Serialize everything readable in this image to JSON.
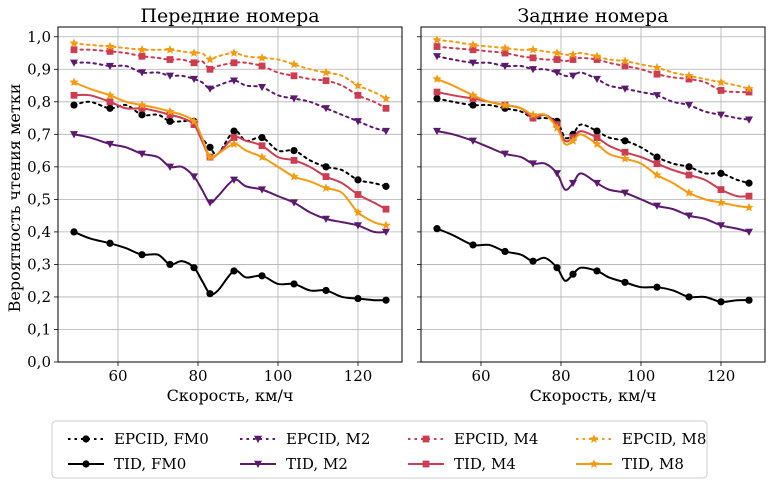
{
  "chart_data": {
    "type": "line",
    "ylabel": "Вероятность чтения метки",
    "xlim": [
      45,
      131
    ],
    "ylim": [
      0.0,
      1.03
    ],
    "x_ticks": [
      60,
      80,
      100,
      120
    ],
    "x_tick_labels": [
      "60",
      "80",
      "100",
      "120"
    ],
    "y_ticks": [
      0.0,
      0.1,
      0.2,
      0.3,
      0.4,
      0.5,
      0.6,
      0.7,
      0.8,
      0.9,
      1.0
    ],
    "y_tick_labels": [
      "0,0",
      "0,1",
      "0,2",
      "0,3",
      "0,4",
      "0,5",
      "0,6",
      "0,7",
      "0,8",
      "0,9",
      "1,0"
    ],
    "grid": true,
    "legend_position": "bottom",
    "legend": [
      {
        "label": "EPCID, FM0",
        "color": "#000000",
        "style": "dotted",
        "marker": "circle"
      },
      {
        "label": "TID, FM0",
        "color": "#000000",
        "style": "solid",
        "marker": "circle"
      },
      {
        "label": "EPCID, M2",
        "color": "#5c1a6e",
        "style": "dotted",
        "marker": "triangle-down"
      },
      {
        "label": "TID, M2",
        "color": "#5c1a6e",
        "style": "solid",
        "marker": "triangle-down"
      },
      {
        "label": "EPCID, M4",
        "color": "#cc3d51",
        "style": "dotted",
        "marker": "square"
      },
      {
        "label": "TID, M4",
        "color": "#cc3d51",
        "style": "solid",
        "marker": "square"
      },
      {
        "label": "EPCID, M8",
        "color": "#f39c12",
        "style": "dotted",
        "marker": "star"
      },
      {
        "label": "TID, M8",
        "color": "#f39c12",
        "style": "solid",
        "marker": "star"
      }
    ],
    "panels": [
      {
        "title": "Передние номера",
        "xlabel": "Скорость, км/ч",
        "series": [
          {
            "name": "EPCID, FM0",
            "color": "#000000",
            "style": "dotted",
            "marker": "circle",
            "x": [
              49,
              53,
              58,
              62,
              66,
              70,
              73,
              76,
              79,
              81,
              83,
              85,
              89,
              92,
              96,
              100,
              104,
              108,
              112,
              116,
              120,
              124,
              127
            ],
            "y": [
              0.79,
              0.8,
              0.78,
              0.79,
              0.76,
              0.76,
              0.74,
              0.74,
              0.74,
              0.69,
              0.66,
              0.64,
              0.71,
              0.68,
              0.69,
              0.65,
              0.65,
              0.62,
              0.6,
              0.59,
              0.56,
              0.55,
              0.54
            ]
          },
          {
            "name": "TID, FM0",
            "color": "#000000",
            "style": "solid",
            "marker": "circle",
            "x": [
              49,
              53,
              58,
              62,
              66,
              70,
              73,
              76,
              79,
              81,
              83,
              85,
              89,
              92,
              96,
              100,
              104,
              108,
              112,
              116,
              120,
              124,
              127
            ],
            "y": [
              0.4,
              0.38,
              0.365,
              0.35,
              0.33,
              0.33,
              0.3,
              0.31,
              0.29,
              0.25,
              0.21,
              0.22,
              0.28,
              0.26,
              0.265,
              0.24,
              0.24,
              0.22,
              0.22,
              0.2,
              0.195,
              0.19,
              0.19
            ]
          },
          {
            "name": "EPCID, M2",
            "color": "#5c1a6e",
            "style": "dotted",
            "marker": "triangle-down",
            "x": [
              49,
              53,
              58,
              62,
              66,
              70,
              73,
              76,
              79,
              81,
              83,
              85,
              89,
              92,
              96,
              100,
              104,
              108,
              112,
              116,
              120,
              124,
              127
            ],
            "y": [
              0.92,
              0.92,
              0.91,
              0.91,
              0.89,
              0.89,
              0.88,
              0.88,
              0.87,
              0.86,
              0.84,
              0.85,
              0.865,
              0.85,
              0.845,
              0.82,
              0.81,
              0.8,
              0.78,
              0.76,
              0.74,
              0.72,
              0.71
            ]
          },
          {
            "name": "TID, M2",
            "color": "#5c1a6e",
            "style": "solid",
            "marker": "triangle-down",
            "x": [
              49,
              53,
              58,
              62,
              66,
              70,
              73,
              76,
              79,
              81,
              83,
              85,
              89,
              92,
              96,
              100,
              104,
              108,
              112,
              116,
              120,
              124,
              127
            ],
            "y": [
              0.7,
              0.69,
              0.67,
              0.66,
              0.64,
              0.63,
              0.6,
              0.6,
              0.57,
              0.53,
              0.49,
              0.51,
              0.56,
              0.54,
              0.53,
              0.51,
              0.49,
              0.46,
              0.44,
              0.43,
              0.42,
              0.4,
              0.4
            ]
          },
          {
            "name": "EPCID, M4",
            "color": "#cc3d51",
            "style": "dotted",
            "marker": "square",
            "x": [
              49,
              53,
              58,
              62,
              66,
              70,
              73,
              76,
              79,
              81,
              83,
              85,
              89,
              92,
              96,
              100,
              104,
              108,
              112,
              116,
              120,
              124,
              127
            ],
            "y": [
              0.96,
              0.96,
              0.955,
              0.95,
              0.94,
              0.935,
              0.93,
              0.93,
              0.92,
              0.925,
              0.9,
              0.91,
              0.92,
              0.92,
              0.91,
              0.89,
              0.88,
              0.87,
              0.865,
              0.85,
              0.82,
              0.8,
              0.78
            ]
          },
          {
            "name": "TID, M4",
            "color": "#cc3d51",
            "style": "solid",
            "marker": "square",
            "x": [
              49,
              53,
              58,
              62,
              66,
              70,
              73,
              76,
              79,
              81,
              83,
              85,
              89,
              92,
              96,
              100,
              104,
              108,
              112,
              116,
              120,
              124,
              127
            ],
            "y": [
              0.82,
              0.82,
              0.8,
              0.78,
              0.78,
              0.77,
              0.76,
              0.75,
              0.73,
              0.68,
              0.63,
              0.64,
              0.69,
              0.68,
              0.665,
              0.63,
              0.62,
              0.6,
              0.57,
              0.55,
              0.515,
              0.49,
              0.47
            ]
          },
          {
            "name": "EPCID, M8",
            "color": "#f39c12",
            "style": "dotted",
            "marker": "star",
            "x": [
              49,
              53,
              58,
              62,
              66,
              70,
              73,
              76,
              79,
              81,
              83,
              85,
              89,
              92,
              96,
              100,
              104,
              108,
              112,
              116,
              120,
              124,
              127
            ],
            "y": [
              0.98,
              0.975,
              0.97,
              0.965,
              0.96,
              0.96,
              0.96,
              0.955,
              0.95,
              0.95,
              0.93,
              0.94,
              0.95,
              0.94,
              0.935,
              0.93,
              0.915,
              0.9,
              0.89,
              0.88,
              0.85,
              0.83,
              0.81
            ]
          },
          {
            "name": "TID, M8",
            "color": "#f39c12",
            "style": "solid",
            "marker": "star",
            "x": [
              49,
              53,
              58,
              62,
              66,
              70,
              73,
              76,
              79,
              81,
              83,
              85,
              89,
              92,
              96,
              100,
              104,
              108,
              112,
              116,
              120,
              124,
              127
            ],
            "y": [
              0.86,
              0.84,
              0.82,
              0.8,
              0.79,
              0.78,
              0.77,
              0.76,
              0.74,
              0.69,
              0.63,
              0.64,
              0.67,
              0.65,
              0.63,
              0.6,
              0.57,
              0.555,
              0.535,
              0.52,
              0.46,
              0.43,
              0.42
            ]
          }
        ]
      },
      {
        "title": "Задние номера",
        "xlabel": "Скорость, км/ч",
        "series": [
          {
            "name": "EPCID, FM0",
            "color": "#000000",
            "style": "dotted",
            "marker": "circle",
            "x": [
              49,
              53,
              58,
              62,
              66,
              70,
              73,
              76,
              79,
              81,
              83,
              85,
              89,
              92,
              96,
              100,
              104,
              108,
              112,
              116,
              120,
              124,
              127
            ],
            "y": [
              0.81,
              0.8,
              0.79,
              0.79,
              0.78,
              0.77,
              0.75,
              0.75,
              0.74,
              0.69,
              0.7,
              0.73,
              0.71,
              0.69,
              0.68,
              0.66,
              0.63,
              0.61,
              0.6,
              0.58,
              0.58,
              0.56,
              0.55
            ]
          },
          {
            "name": "TID, FM0",
            "color": "#000000",
            "style": "solid",
            "marker": "circle",
            "x": [
              49,
              53,
              58,
              62,
              66,
              70,
              73,
              76,
              79,
              81,
              83,
              85,
              89,
              92,
              96,
              100,
              104,
              108,
              112,
              116,
              120,
              124,
              127
            ],
            "y": [
              0.41,
              0.39,
              0.36,
              0.36,
              0.34,
              0.33,
              0.31,
              0.32,
              0.29,
              0.25,
              0.27,
              0.29,
              0.28,
              0.26,
              0.245,
              0.23,
              0.23,
              0.22,
              0.2,
              0.2,
              0.185,
              0.19,
              0.19
            ]
          },
          {
            "name": "EPCID, M2",
            "color": "#5c1a6e",
            "style": "dotted",
            "marker": "triangle-down",
            "x": [
              49,
              53,
              58,
              62,
              66,
              70,
              73,
              76,
              79,
              81,
              83,
              85,
              89,
              92,
              96,
              100,
              104,
              108,
              112,
              116,
              120,
              124,
              127
            ],
            "y": [
              0.94,
              0.93,
              0.92,
              0.92,
              0.91,
              0.91,
              0.9,
              0.9,
              0.89,
              0.88,
              0.88,
              0.89,
              0.87,
              0.85,
              0.84,
              0.83,
              0.82,
              0.8,
              0.79,
              0.77,
              0.76,
              0.75,
              0.745
            ]
          },
          {
            "name": "TID, M2",
            "color": "#5c1a6e",
            "style": "solid",
            "marker": "triangle-down",
            "x": [
              49,
              53,
              58,
              62,
              66,
              70,
              73,
              76,
              79,
              81,
              83,
              85,
              89,
              92,
              96,
              100,
              104,
              108,
              112,
              116,
              120,
              124,
              127
            ],
            "y": [
              0.71,
              0.7,
              0.68,
              0.66,
              0.64,
              0.63,
              0.61,
              0.61,
              0.58,
              0.53,
              0.55,
              0.58,
              0.55,
              0.53,
              0.52,
              0.5,
              0.48,
              0.47,
              0.45,
              0.44,
              0.42,
              0.41,
              0.4
            ]
          },
          {
            "name": "EPCID, M4",
            "color": "#cc3d51",
            "style": "dotted",
            "marker": "square",
            "x": [
              49,
              53,
              58,
              62,
              66,
              70,
              73,
              76,
              79,
              81,
              83,
              85,
              89,
              92,
              96,
              100,
              104,
              108,
              112,
              116,
              120,
              124,
              127
            ],
            "y": [
              0.97,
              0.965,
              0.96,
              0.955,
              0.95,
              0.94,
              0.935,
              0.93,
              0.93,
              0.925,
              0.93,
              0.935,
              0.93,
              0.92,
              0.91,
              0.9,
              0.885,
              0.875,
              0.87,
              0.86,
              0.835,
              0.83,
              0.83
            ]
          },
          {
            "name": "TID, M4",
            "color": "#cc3d51",
            "style": "solid",
            "marker": "square",
            "x": [
              49,
              53,
              58,
              62,
              66,
              70,
              73,
              76,
              79,
              81,
              83,
              85,
              89,
              92,
              96,
              100,
              104,
              108,
              112,
              116,
              120,
              124,
              127
            ],
            "y": [
              0.83,
              0.82,
              0.81,
              0.8,
              0.79,
              0.78,
              0.75,
              0.76,
              0.73,
              0.68,
              0.69,
              0.71,
              0.69,
              0.665,
              0.645,
              0.63,
              0.61,
              0.59,
              0.575,
              0.56,
              0.53,
              0.51,
              0.51
            ]
          },
          {
            "name": "EPCID, M8",
            "color": "#f39c12",
            "style": "dotted",
            "marker": "star",
            "x": [
              49,
              53,
              58,
              62,
              66,
              70,
              73,
              76,
              79,
              81,
              83,
              85,
              89,
              92,
              96,
              100,
              104,
              108,
              112,
              116,
              120,
              124,
              127
            ],
            "y": [
              0.99,
              0.985,
              0.975,
              0.97,
              0.965,
              0.96,
              0.96,
              0.955,
              0.95,
              0.945,
              0.945,
              0.95,
              0.94,
              0.93,
              0.925,
              0.915,
              0.905,
              0.89,
              0.88,
              0.87,
              0.86,
              0.85,
              0.84
            ]
          },
          {
            "name": "TID, M8",
            "color": "#f39c12",
            "style": "solid",
            "marker": "star",
            "x": [
              49,
              53,
              58,
              62,
              66,
              70,
              73,
              76,
              79,
              81,
              83,
              85,
              89,
              92,
              96,
              100,
              104,
              108,
              112,
              116,
              120,
              124,
              127
            ],
            "y": [
              0.87,
              0.85,
              0.82,
              0.8,
              0.79,
              0.78,
              0.76,
              0.76,
              0.72,
              0.67,
              0.68,
              0.7,
              0.67,
              0.64,
              0.625,
              0.61,
              0.575,
              0.55,
              0.52,
              0.5,
              0.49,
              0.48,
              0.475
            ]
          }
        ]
      }
    ]
  }
}
